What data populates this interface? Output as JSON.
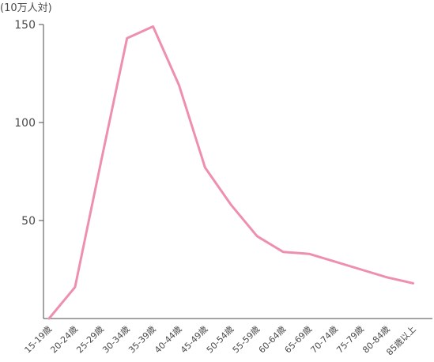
{
  "chart_data": {
    "type": "line",
    "title": "",
    "ylabel": "(10万人対)",
    "xlabel": "",
    "categories": [
      "15-19歳",
      "20-24歳",
      "25-29歳",
      "30-34歳",
      "35-39歳",
      "40-44歳",
      "45-49歳",
      "50-54歳",
      "55-59歳",
      "60-64歳",
      "65-69歳",
      "70-74歳",
      "75-79歳",
      "80-84歳",
      "85歳以上"
    ],
    "series": [
      {
        "values": [
          0,
          16,
          80,
          143,
          149,
          119,
          77,
          58,
          42,
          34,
          33,
          29,
          25,
          21,
          18
        ]
      }
    ],
    "ylim": [
      0,
      150
    ],
    "yticks": [
      50,
      100,
      150
    ],
    "grid": false,
    "colors": {
      "line": "#ee8fb0",
      "axis": "#4a4a4a"
    }
  }
}
